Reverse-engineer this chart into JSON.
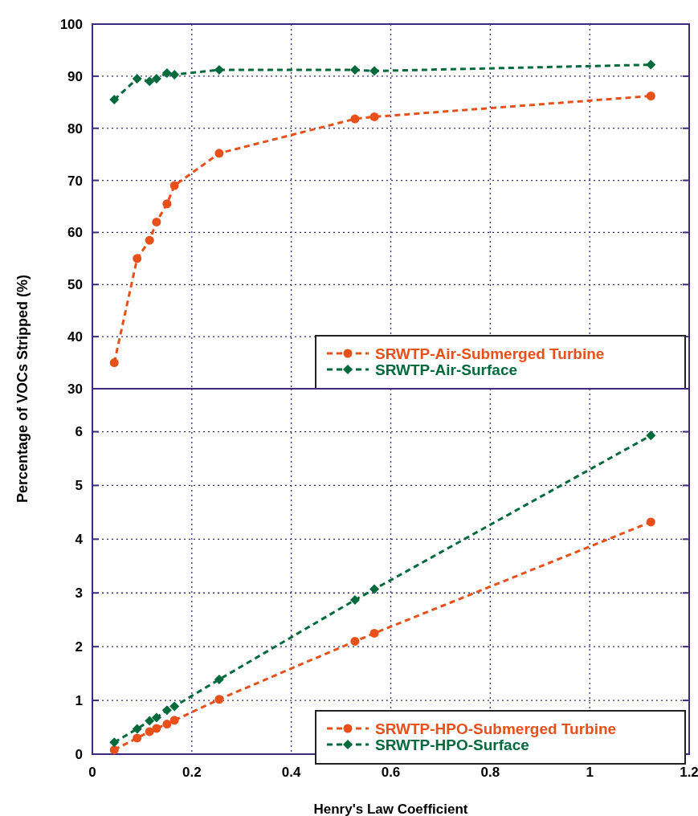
{
  "chart_data": [
    {
      "type": "line",
      "ylabel": "Percentage of VOCs Stripped (%)",
      "xlim": [
        0,
        1.2
      ],
      "xticks": [
        0,
        0.2,
        0.4,
        0.6,
        0.8,
        1,
        1.2
      ],
      "ylim": [
        30,
        100
      ],
      "yticks": [
        30,
        40,
        50,
        60,
        70,
        80,
        90,
        100
      ],
      "grid": true,
      "legend": "bottom right",
      "tick_labels": "y",
      "line_style": "dashed",
      "x": [
        0.044,
        0.09,
        0.115,
        0.129,
        0.15,
        0.165,
        0.255,
        0.528,
        0.567,
        1.123
      ],
      "series": [
        {
          "name": "SRWTP-Air-Submerged Turbine",
          "color": "#e8501a",
          "marker": "circle",
          "values": [
            35,
            55,
            58.5,
            62,
            65.5,
            69,
            75.2,
            81.8,
            82.2,
            86.2
          ]
        },
        {
          "name": "SRWTP-Air-Surface",
          "color": "#006a3c",
          "marker": "diamond",
          "values": [
            85.5,
            89.5,
            89,
            89.5,
            90.6,
            90.3,
            91.2,
            91.2,
            91,
            92.2
          ]
        }
      ]
    },
    {
      "type": "line",
      "xlabel": "Henry's Law Coefficient",
      "xlim": [
        0,
        1.2
      ],
      "xticks": [
        0,
        0.2,
        0.4,
        0.6,
        0.8,
        1,
        1.2
      ],
      "ylim": [
        0,
        6.8
      ],
      "yticks": [
        0,
        1,
        2,
        3,
        4,
        5,
        6
      ],
      "grid": true,
      "legend": "bottom right",
      "line_style": "dashed",
      "x": [
        0.044,
        0.09,
        0.115,
        0.129,
        0.15,
        0.165,
        0.255,
        0.528,
        0.567,
        1.123
      ],
      "series": [
        {
          "name": "SRWTP-HPO-Submerged Turbine",
          "color": "#e8501a",
          "marker": "circle",
          "values": [
            0.08,
            0.3,
            0.42,
            0.48,
            0.56,
            0.63,
            1.02,
            2.1,
            2.25,
            4.32
          ]
        },
        {
          "name": "SRWTP-HPO-Surface",
          "color": "#006a3c",
          "marker": "diamond",
          "values": [
            0.22,
            0.47,
            0.62,
            0.68,
            0.82,
            0.89,
            1.39,
            2.87,
            3.07,
            5.93
          ]
        }
      ]
    }
  ]
}
